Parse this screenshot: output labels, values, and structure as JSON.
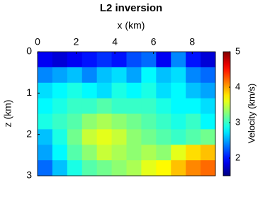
{
  "chart_data": {
    "type": "heatmap",
    "title": "L2 inversion",
    "xlabel": "x (km)",
    "ylabel": "z (km)",
    "colorbar_label": "Velocity (km/s)",
    "colormap": "jet",
    "clim": [
      1.5,
      5
    ],
    "cticks": [
      2,
      3,
      4,
      5
    ],
    "xlim": [
      0,
      9.2
    ],
    "xticks": [
      0,
      2,
      4,
      6,
      8
    ],
    "ylim": [
      0,
      3
    ],
    "yticks": [
      0,
      1,
      2,
      3
    ],
    "values": [
      [
        1.9,
        1.8,
        1.9,
        2.0,
        2.1,
        2.0,
        2.2,
        2.3,
        1.9,
        2.4,
        2.0,
        1.8
      ],
      [
        2.4,
        2.5,
        2.6,
        2.4,
        2.6,
        2.7,
        2.5,
        2.8,
        2.6,
        2.7,
        2.4,
        2.3
      ],
      [
        2.7,
        2.8,
        2.9,
        2.8,
        2.7,
        2.9,
        2.8,
        2.9,
        2.7,
        2.8,
        2.6,
        2.5
      ],
      [
        2.8,
        2.9,
        3.0,
        3.0,
        3.1,
        3.0,
        3.0,
        3.0,
        2.9,
        2.8,
        2.8,
        2.7
      ],
      [
        2.9,
        3.0,
        3.1,
        3.3,
        3.4,
        3.3,
        3.2,
        3.1,
        3.0,
        2.9,
        3.0,
        2.8
      ],
      [
        2.6,
        2.9,
        3.2,
        3.5,
        3.6,
        3.5,
        3.3,
        3.2,
        3.1,
        3.0,
        3.1,
        3.2
      ],
      [
        2.5,
        2.8,
        3.1,
        3.3,
        3.5,
        3.4,
        3.3,
        3.4,
        3.3,
        3.6,
        3.8,
        3.9
      ],
      [
        2.3,
        2.6,
        2.9,
        3.1,
        3.2,
        3.3,
        3.4,
        3.6,
        3.7,
        3.9,
        4.1,
        4.2
      ]
    ]
  }
}
